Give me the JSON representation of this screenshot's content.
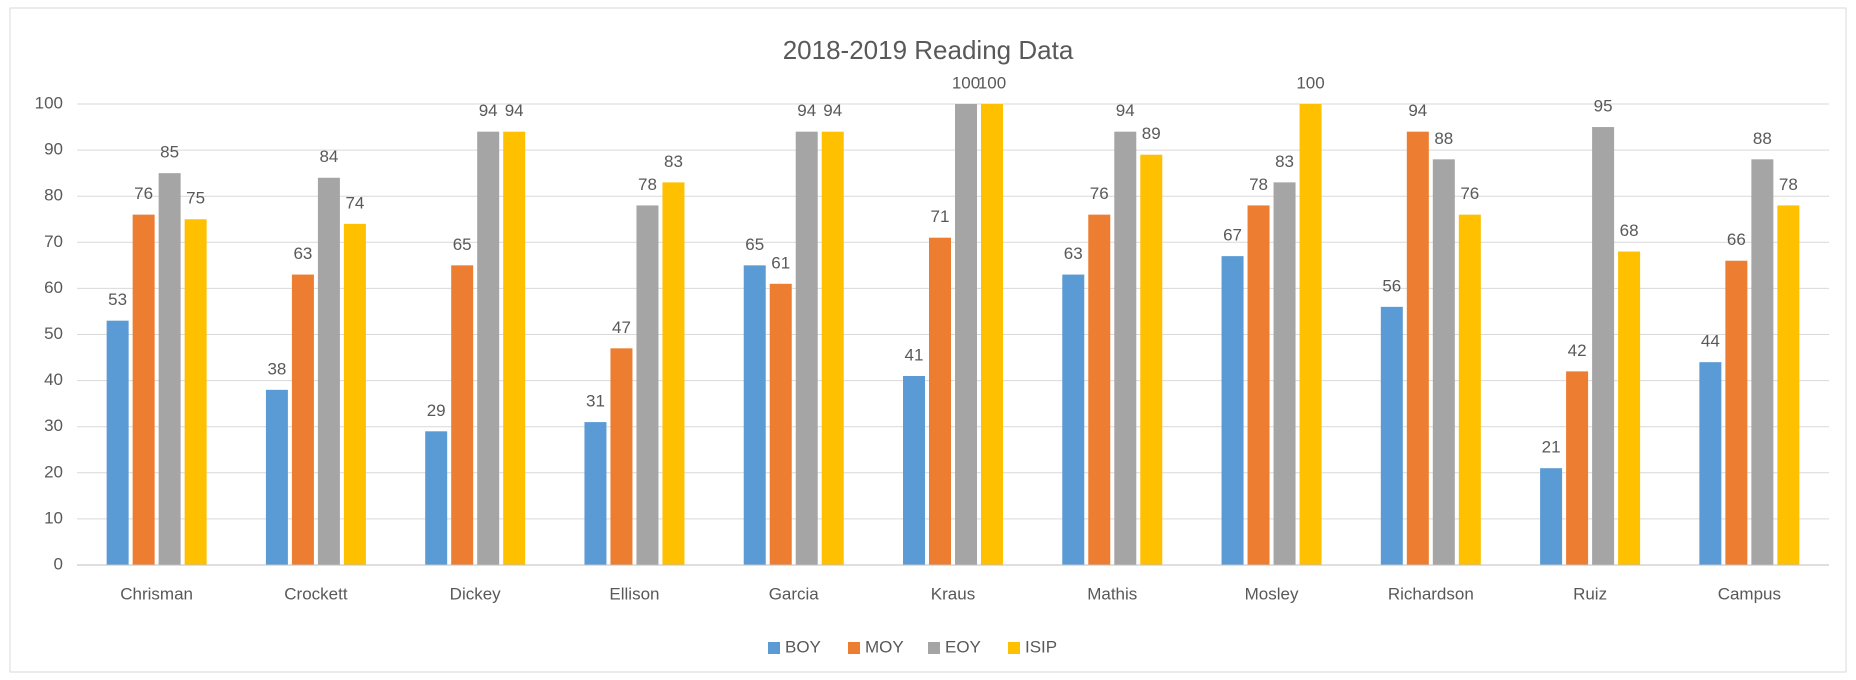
{
  "chart_data": {
    "type": "bar",
    "title": "2018-2019 Reading Data",
    "categories": [
      "Chrisman",
      "Crockett",
      "Dickey",
      "Ellison",
      "Garcia",
      "Kraus",
      "Mathis",
      "Mosley",
      "Richardson",
      "Ruiz",
      "Campus"
    ],
    "series": [
      {
        "name": "BOY",
        "color": "#5b9bd5",
        "values": [
          53,
          38,
          29,
          31,
          65,
          41,
          63,
          67,
          56,
          21,
          44
        ]
      },
      {
        "name": "MOY",
        "color": "#ed7d31",
        "values": [
          76,
          63,
          65,
          47,
          61,
          71,
          76,
          78,
          94,
          42,
          66
        ]
      },
      {
        "name": "EOY",
        "color": "#a5a5a5",
        "values": [
          85,
          84,
          94,
          78,
          94,
          100,
          94,
          83,
          88,
          95,
          88
        ]
      },
      {
        "name": "ISIP",
        "color": "#ffc000",
        "values": [
          75,
          74,
          94,
          83,
          94,
          100,
          89,
          100,
          76,
          68,
          78
        ]
      }
    ],
    "ylim": [
      0,
      100
    ],
    "yticks": [
      0,
      10,
      20,
      30,
      40,
      50,
      60,
      70,
      80,
      90,
      100
    ],
    "grid": true,
    "legend": "bottom"
  }
}
